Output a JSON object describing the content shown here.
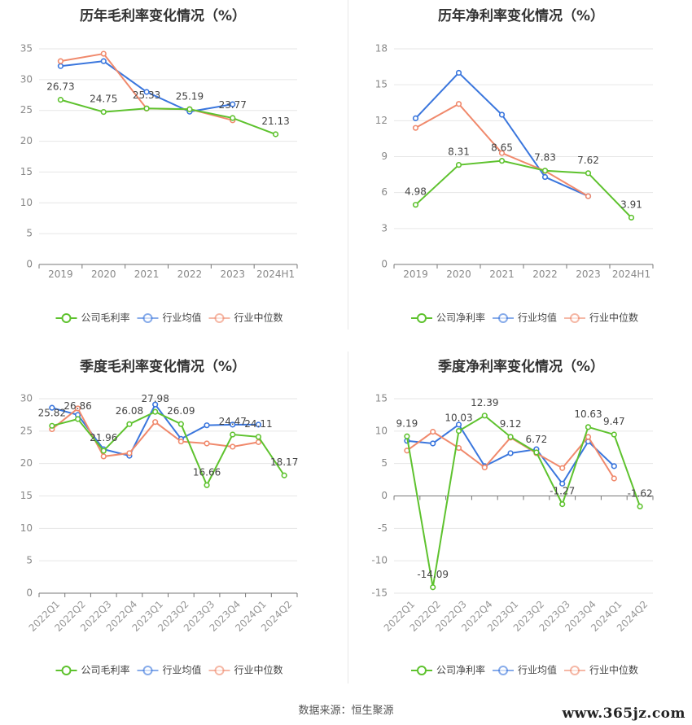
{
  "colors": {
    "company": "#5ec22e",
    "avg": "#3a76dd",
    "median": "#f0896c",
    "grid": "#e6e6e6",
    "axis": "#999999"
  },
  "source_text": "数据来源：恒生聚源",
  "watermark": "www.365jz.com",
  "chart_data": [
    {
      "type": "line",
      "title": "历年毛利率变化情况（%）",
      "categories": [
        "2019",
        "2020",
        "2021",
        "2022",
        "2023",
        "2024H1"
      ],
      "ylim": [
        0,
        35
      ],
      "yticks": [
        0,
        5,
        10,
        15,
        20,
        25,
        30,
        35
      ],
      "series": [
        {
          "name": "公司毛利率",
          "values": [
            26.73,
            24.75,
            25.33,
            25.19,
            23.77,
            21.13
          ],
          "labels": [
            "26.73",
            "24.75",
            "25.33",
            "25.19",
            "23.77",
            "21.13"
          ]
        },
        {
          "name": "行业均值",
          "values": [
            32.2,
            33.0,
            28.0,
            24.8,
            26.0,
            null
          ]
        },
        {
          "name": "行业中位数",
          "values": [
            33.0,
            34.2,
            25.3,
            25.2,
            23.4,
            null
          ]
        }
      ],
      "legend": "bottom"
    },
    {
      "type": "line",
      "title": "历年净利率变化情况（%）",
      "categories": [
        "2019",
        "2020",
        "2021",
        "2022",
        "2023",
        "2024H1"
      ],
      "ylim": [
        0,
        18
      ],
      "yticks": [
        0,
        3,
        6,
        9,
        12,
        15,
        18
      ],
      "series": [
        {
          "name": "公司净利率",
          "values": [
            4.98,
            8.31,
            8.65,
            7.83,
            7.62,
            3.91
          ],
          "labels": [
            "4.98",
            "8.31",
            "8.65",
            "7.83",
            "7.62",
            "3.91"
          ]
        },
        {
          "name": "行业均值",
          "values": [
            12.2,
            16.0,
            12.5,
            7.3,
            5.7,
            null
          ]
        },
        {
          "name": "行业中位数",
          "values": [
            11.4,
            13.4,
            9.3,
            7.8,
            5.7,
            null
          ]
        }
      ],
      "legend": "bottom"
    },
    {
      "type": "line",
      "title": "季度毛利率变化情况（%）",
      "categories": [
        "2022Q1",
        "2022Q2",
        "2022Q3",
        "2022Q4",
        "2023Q1",
        "2023Q2",
        "2023Q3",
        "2023Q4",
        "2024Q1",
        "2024Q2"
      ],
      "ylim": [
        0,
        30
      ],
      "yticks": [
        0,
        5,
        10,
        15,
        20,
        25,
        30
      ],
      "series": [
        {
          "name": "公司毛利率",
          "values": [
            25.82,
            26.86,
            21.96,
            26.08,
            27.98,
            26.09,
            16.66,
            24.47,
            24.11,
            18.17
          ],
          "labels": [
            "25.82",
            "26.86",
            "21.96",
            "26.08",
            "27.98",
            "26.09",
            "16.66",
            "24.47",
            "24.11",
            "18.17"
          ]
        },
        {
          "name": "行业均值",
          "values": [
            28.6,
            27.5,
            22.2,
            21.2,
            29.1,
            23.8,
            25.9,
            26.0,
            26.0,
            null
          ]
        },
        {
          "name": "行业中位数",
          "values": [
            25.3,
            28.5,
            21.1,
            21.6,
            26.4,
            23.4,
            23.1,
            22.6,
            23.3,
            null
          ]
        }
      ],
      "legend": "bottom"
    },
    {
      "type": "line",
      "title": "季度净利率变化情况（%）",
      "categories": [
        "2022Q1",
        "2022Q2",
        "2022Q3",
        "2022Q4",
        "2023Q1",
        "2023Q2",
        "2023Q3",
        "2023Q4",
        "2024Q1",
        "2024Q2"
      ],
      "ylim": [
        -15,
        15
      ],
      "yticks": [
        -15,
        -10,
        -5,
        0,
        5,
        10,
        15
      ],
      "series": [
        {
          "name": "公司净利率",
          "values": [
            9.19,
            -14.09,
            10.03,
            12.39,
            9.12,
            6.72,
            -1.27,
            10.63,
            9.47,
            -1.62
          ],
          "labels": [
            "9.19",
            "-14.09",
            "10.03",
            "12.39",
            "9.12",
            "6.72",
            "-1.27",
            "10.63",
            "9.47",
            "-1.62"
          ]
        },
        {
          "name": "行业均值",
          "values": [
            8.5,
            8.1,
            11.0,
            4.6,
            6.6,
            7.2,
            1.9,
            8.4,
            4.6,
            null
          ]
        },
        {
          "name": "行业中位数",
          "values": [
            7.0,
            9.9,
            7.4,
            4.4,
            9.0,
            6.6,
            4.3,
            9.1,
            2.7,
            null
          ]
        }
      ],
      "legend": "bottom"
    }
  ]
}
